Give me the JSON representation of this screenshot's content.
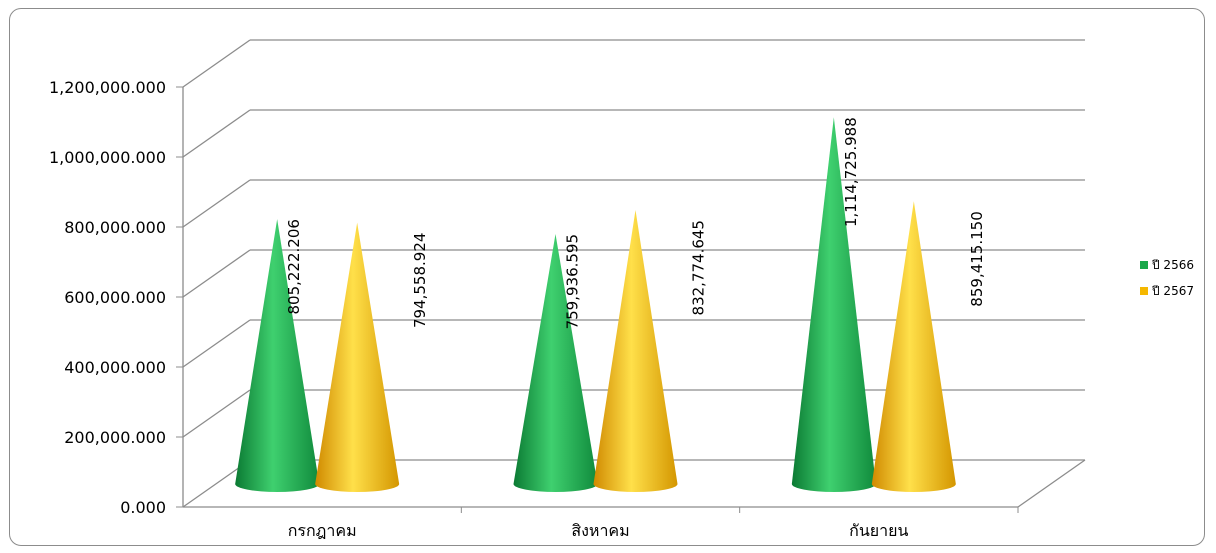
{
  "chart_data": {
    "type": "bar",
    "subtype": "3d-cone",
    "categories": [
      "กรกฎาคม",
      "สิงหาคม",
      "กันยายน"
    ],
    "series": [
      {
        "name": "ปี 2566",
        "color": "#1aa84a",
        "values": [
          805222.206,
          759936.595,
          1114725.988
        ],
        "labels": [
          "805,222.206",
          "759,936.595",
          "1,114,725.988"
        ]
      },
      {
        "name": "ปี 2567",
        "color": "#f5b800",
        "values": [
          794558.924,
          832774.645,
          859415.15
        ],
        "labels": [
          "794,558.924",
          "832,774.645",
          "859,415.150"
        ]
      }
    ],
    "ylim": [
      0,
      1200000
    ],
    "yticks": [
      "0.000",
      "200,000.000",
      "400,000.000",
      "600,000.000",
      "800,000.000",
      "1,000,000.000",
      "1,200,000.000"
    ],
    "grid": true,
    "legend_position": "right"
  }
}
